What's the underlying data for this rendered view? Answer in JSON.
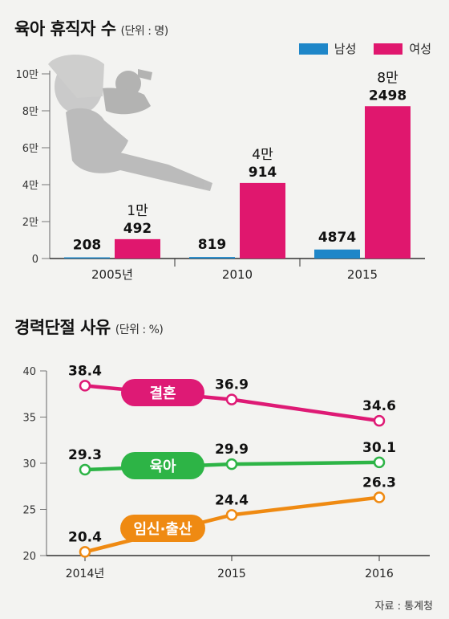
{
  "chart_data": [
    {
      "type": "bar",
      "title": "육아 휴직자 수",
      "unit": "(단위 : 명)",
      "categories": [
        "2005년",
        "2010",
        "2015"
      ],
      "ytick_labels": [
        "0",
        "2만",
        "4만",
        "6만",
        "8만",
        "10만"
      ],
      "ylim": [
        0,
        100000
      ],
      "legend": "top-right",
      "series": [
        {
          "name": "남성",
          "color": "#1e86c8",
          "values": [
            208,
            819,
            4874
          ],
          "labels": [
            "208",
            "819",
            "4874"
          ]
        },
        {
          "name": "여성",
          "color": "#e0176e",
          "values": [
            10492,
            40914,
            82498
          ],
          "labels": [
            [
              "1만",
              "492"
            ],
            [
              "4만",
              "914"
            ],
            [
              "8만",
              "2498"
            ]
          ]
        }
      ]
    },
    {
      "type": "line",
      "title": "경력단절 사유",
      "unit": "(단위 : %)",
      "categories": [
        "2014년",
        "2015",
        "2016"
      ],
      "ytick_labels": [
        "20",
        "25",
        "30",
        "35",
        "40"
      ],
      "ylim": [
        20,
        40
      ],
      "series": [
        {
          "name": "결혼",
          "color": "#de1a75",
          "values": [
            38.4,
            36.9,
            34.6
          ]
        },
        {
          "name": "육아",
          "color": "#2db446",
          "values": [
            29.3,
            29.9,
            30.1
          ]
        },
        {
          "name": "임신·출산",
          "color": "#ef8a12",
          "values": [
            20.4,
            24.4,
            26.3
          ]
        }
      ]
    }
  ],
  "source": "자료 : 통계청"
}
